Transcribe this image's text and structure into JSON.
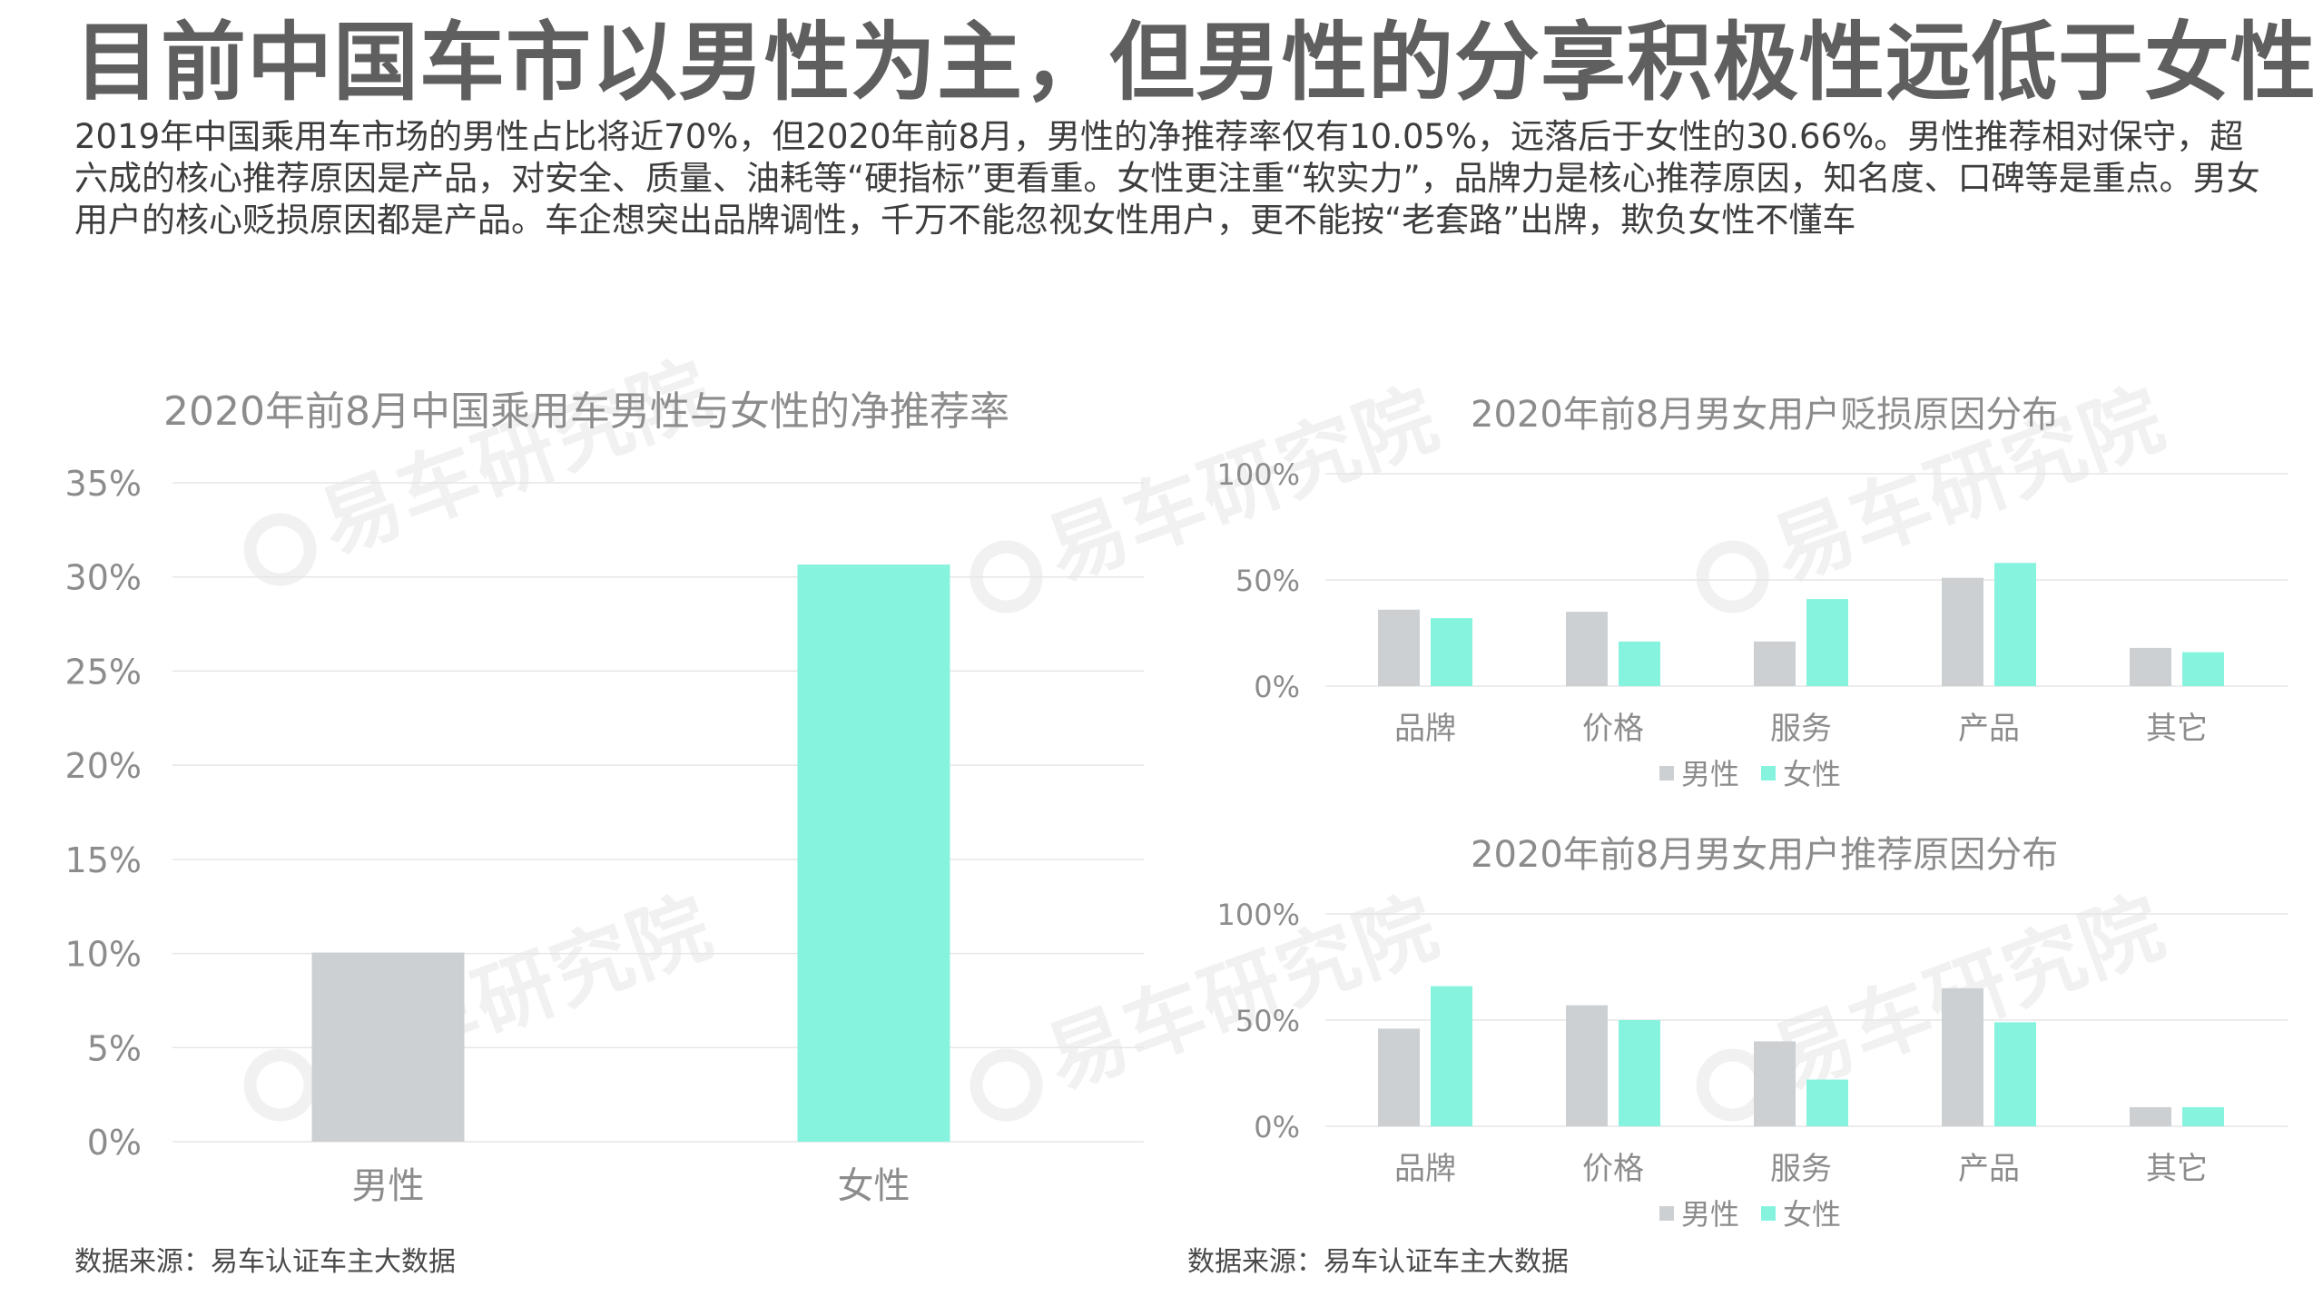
{
  "page": {
    "title": "目前中国车市以男性为主，但男性的分享积极性远低于女性",
    "summary": "2019年中国乘用车市场的男性占比将近70%，但2020年前8月，男性的净推荐率仅有10.05%，远落后于女性的30.66%。男性推荐相对保守，超六成的核心推荐原因是产品，对安全、质量、油耗等“硬指标”更看重。女性更注重“软实力”，品牌力是核心推荐原因，知名度、口碑等是重点。男女用户的核心贬损原因都是产品。车企想突出品牌调性，千万不能忽视女性用户，更不能按“老套路”出牌，欺负女性不懂车",
    "source_left": "数据来源：易车认证车主大数据",
    "source_right": "数据来源：易车认证车主大数据",
    "watermark_text": "易车研究院"
  },
  "colors": {
    "male": "#cdd0d2",
    "female": "#86f3df"
  },
  "chart_data": [
    {
      "type": "bar",
      "title": "2020年前8月中国乘用车男性与女性的净推荐率",
      "categories": [
        "男性",
        "女性"
      ],
      "values": [
        10.05,
        30.66
      ],
      "ylim": [
        0,
        35
      ],
      "yticks": [
        "0%",
        "5%",
        "10%",
        "15%",
        "20%",
        "25%",
        "30%",
        "35%"
      ],
      "grid": true,
      "legend": "none"
    },
    {
      "type": "bar",
      "title": "2020年前8月男女用户贬损原因分布",
      "categories": [
        "品牌",
        "价格",
        "服务",
        "产品",
        "其它"
      ],
      "series": [
        {
          "name": "男性",
          "values": [
            36,
            35,
            21,
            51,
            18
          ]
        },
        {
          "name": "女性",
          "values": [
            32,
            21,
            41,
            58,
            16
          ]
        }
      ],
      "ylim": [
        0,
        100
      ],
      "yticks": [
        "0%",
        "50%",
        "100%"
      ],
      "grid": true,
      "legend": "bottom"
    },
    {
      "type": "bar",
      "title": "2020年前8月男女用户推荐原因分布",
      "categories": [
        "品牌",
        "价格",
        "服务",
        "产品",
        "其它"
      ],
      "series": [
        {
          "name": "男性",
          "values": [
            46,
            57,
            40,
            65,
            9
          ]
        },
        {
          "name": "女性",
          "values": [
            66,
            50,
            22,
            49,
            9
          ]
        }
      ],
      "ylim": [
        0,
        100
      ],
      "yticks": [
        "0%",
        "50%",
        "100%"
      ],
      "grid": true,
      "legend": "bottom"
    }
  ]
}
